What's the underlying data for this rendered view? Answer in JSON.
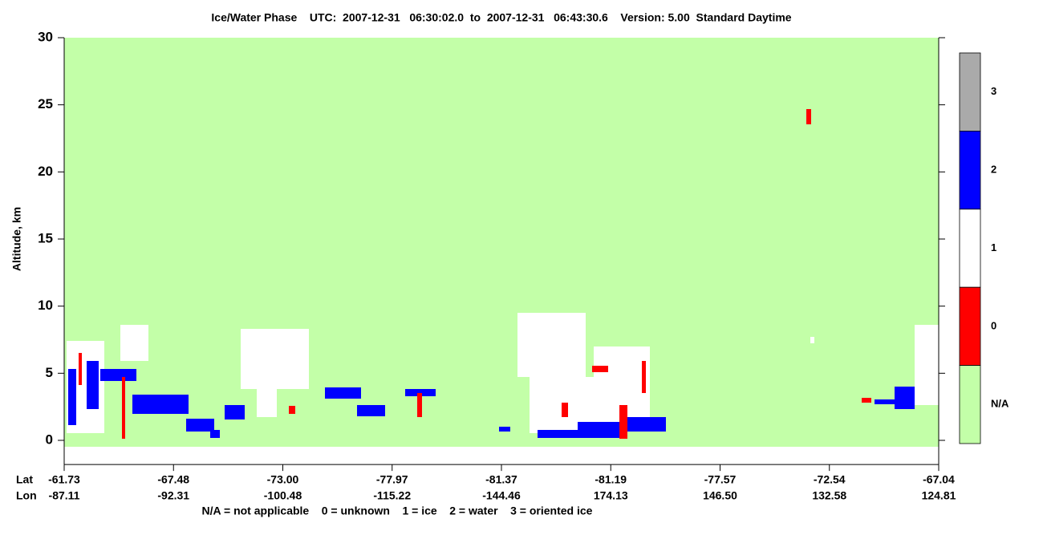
{
  "chart_data": {
    "type": "curtain",
    "title": "Ice/Water Phase    UTC:  2007-12-31   06:30:02.0  to  2007-12-31   06:43:30.6    Version: 5.00  Standard Daytime",
    "ylabel": "Altitude, km",
    "ylim": [
      -1.8,
      30
    ],
    "yticks": [
      0,
      5,
      10,
      15,
      20,
      25,
      30
    ],
    "background_color": "#c3ffa8",
    "x_row_labels": [
      "Lat",
      "Lon"
    ],
    "lat": [
      "-61.73",
      "-67.48",
      "-73.00",
      "-77.97",
      "-81.37",
      "-81.19",
      "-77.57",
      "-72.54",
      "-67.04"
    ],
    "lon": [
      "-87.11",
      "-92.31",
      "-100.48",
      "-115.22",
      "-144.46",
      "174.13",
      "146.50",
      "132.58",
      "124.81"
    ],
    "colorbar": {
      "labels": [
        "3",
        "2",
        "1",
        "0",
        "N/A"
      ],
      "colors": [
        "#aaaaaa",
        "#0000ff",
        "#ffffff",
        "#ff0000",
        "#c3ffa8"
      ]
    },
    "legend_text": "N/A = not applicable    0 = unknown    1 = ice    2 = water    3 = oriented ice"
  }
}
